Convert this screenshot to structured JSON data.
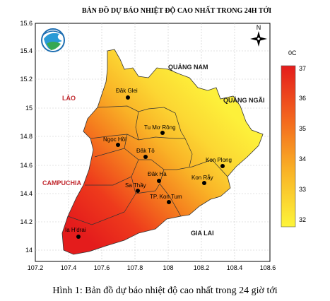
{
  "map": {
    "title": "BẢN ĐỒ DỰ BÁO NHIỆT ĐỘ CAO NHẤT TRONG 24H TỚI",
    "x_ticks": [
      "107.2",
      "107.4",
      "107.6",
      "107.8",
      "108",
      "108.2",
      "108.4",
      "108.6"
    ],
    "y_ticks": [
      "15.6",
      "15.4",
      "15.2",
      "15",
      "14.8",
      "14.6",
      "14.4",
      "14.2",
      "14"
    ],
    "north_symbol": "N",
    "colors": {
      "hot": "#e8221a",
      "mid": "#f79a1e",
      "cool": "#fce23a",
      "coolest": "#fdf53a",
      "border": "#333333"
    }
  },
  "legend": {
    "unit": "0C",
    "ticks": [
      "37",
      "36",
      "35",
      "34",
      "33",
      "32"
    ]
  },
  "regions": {
    "quang_nam": "QUẢNG NAM",
    "quang_ngai": "QUẢNG NGÃI",
    "lao": "LÀO",
    "campuchia": "CAMPUCHIA",
    "gia_lai": "GIA LAI"
  },
  "places": {
    "dak_glei": "Đăk Glei",
    "tu_mo_rong": "Tu Mơ Rông",
    "ngoc_hoi": "Ngọc Hồi",
    "dak_to": "Đăk Tô",
    "kon_plong": "Kon Plong",
    "dak_ha": "Đăk Hà",
    "kon_ray": "Kon Rẫy",
    "sa_thay": "Sa Thầy",
    "tp_kon_tum": "TP. Kon Tum",
    "ia_hdrai": "Ia H'drai"
  },
  "caption": "Hình 1: Bản đồ dự báo nhiệt độ cao nhất trong 24 giờ tới"
}
